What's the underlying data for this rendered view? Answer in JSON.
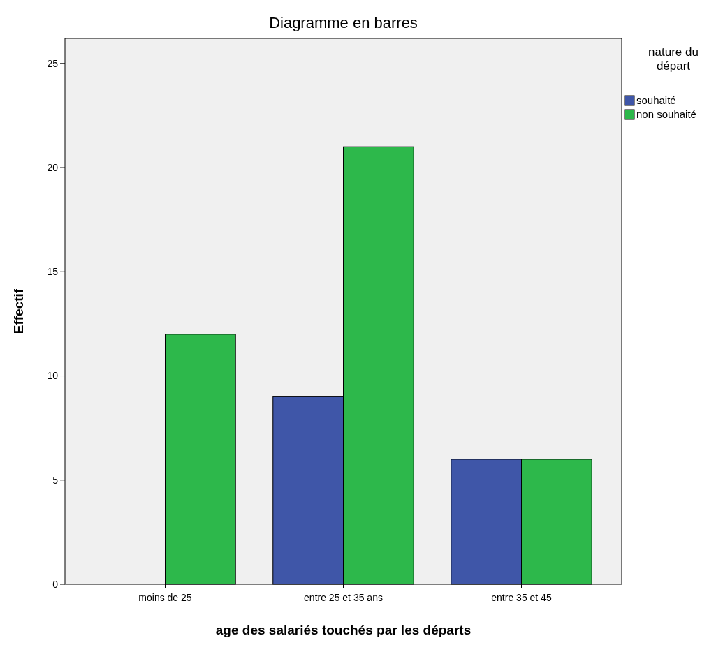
{
  "chart_data": {
    "type": "bar",
    "title": "Diagramme en barres",
    "xlabel": "age des salariés touchés par les départs",
    "ylabel": "Effectif",
    "legend_title": "nature du départ",
    "categories": [
      "moins de 25",
      "entre 25 et 35 ans",
      "entre 35 et 45"
    ],
    "series": [
      {
        "name": "souhaité",
        "color": "#3f56a8",
        "values": [
          null,
          9,
          6
        ]
      },
      {
        "name": "non souhaité",
        "color": "#2db84b",
        "values": [
          12,
          21,
          6
        ]
      }
    ],
    "ylim": [
      0,
      26.2
    ],
    "yticks": [
      0,
      5,
      10,
      15,
      20,
      25
    ],
    "grid": false,
    "legend": "top right"
  }
}
